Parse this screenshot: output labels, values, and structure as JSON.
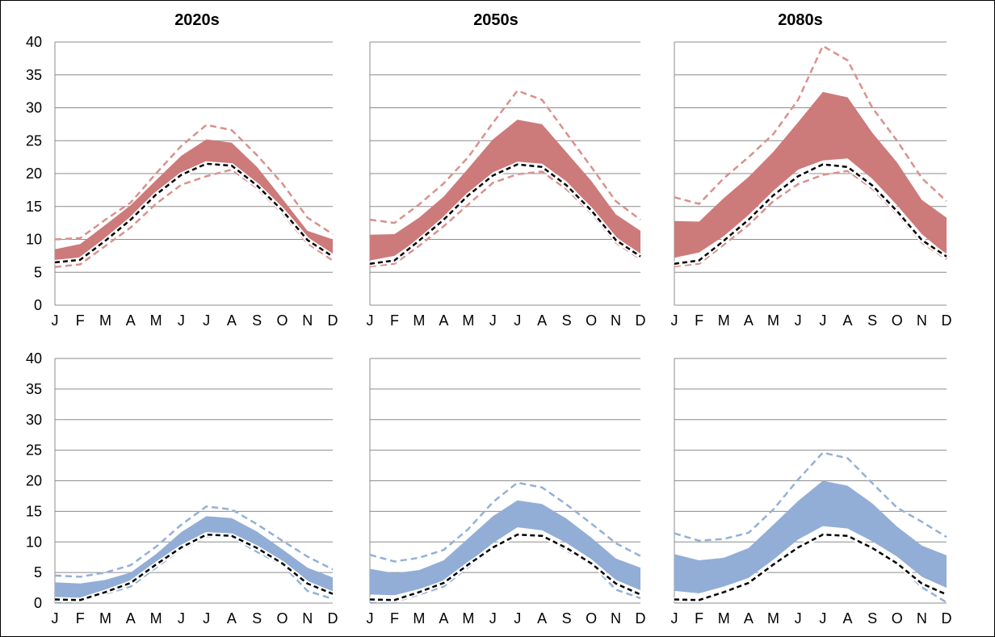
{
  "column_titles": [
    "2020s",
    "2050s",
    "2080s"
  ],
  "colors": {
    "warm_fill": "#cd7a7a",
    "warm_dash": "#d9918d",
    "cool_fill": "#92aed6",
    "cool_dash": "#93b1d6",
    "baseline_dash": "#000000",
    "grid": "#8c8c8c"
  },
  "chart_data": [
    {
      "type": "area",
      "row": "top",
      "column": "2020s",
      "categories": [
        "J",
        "F",
        "M",
        "A",
        "M",
        "J",
        "J",
        "A",
        "S",
        "O",
        "N",
        "D"
      ],
      "ylim": [
        0,
        40
      ],
      "yticks": [
        0,
        5,
        10,
        15,
        20,
        25,
        30,
        35,
        40
      ],
      "grid": true,
      "band_upper": [
        8.5,
        9.3,
        12.2,
        15.2,
        19.0,
        22.7,
        25.2,
        24.7,
        21.0,
        16.2,
        11.3,
        10.0
      ],
      "band_lower": [
        6.3,
        6.6,
        9.5,
        12.8,
        16.5,
        19.6,
        21.5,
        21.2,
        18.2,
        14.3,
        9.9,
        7.3
      ],
      "dash_upper": [
        10.0,
        10.2,
        13.0,
        15.6,
        20.0,
        24.2,
        27.4,
        26.6,
        22.8,
        18.5,
        13.3,
        10.8
      ],
      "dash_lower": [
        5.8,
        6.2,
        9.0,
        11.8,
        15.4,
        18.3,
        19.6,
        20.6,
        17.8,
        14.0,
        9.4,
        6.8
      ],
      "baseline": [
        6.5,
        6.9,
        9.8,
        13.0,
        16.8,
        19.8,
        21.5,
        21.2,
        18.2,
        14.4,
        9.9,
        7.4
      ]
    },
    {
      "type": "area",
      "row": "top",
      "column": "2050s",
      "categories": [
        "J",
        "F",
        "M",
        "A",
        "M",
        "J",
        "J",
        "A",
        "S",
        "O",
        "N",
        "D"
      ],
      "ylim": [
        0,
        40
      ],
      "yticks": [
        0,
        5,
        10,
        15,
        20,
        25,
        30,
        35,
        40
      ],
      "grid": true,
      "band_upper": [
        10.7,
        10.8,
        13.3,
        16.5,
        20.8,
        25.2,
        28.2,
        27.5,
        23.2,
        18.9,
        13.8,
        11.3
      ],
      "band_lower": [
        6.8,
        7.5,
        10.1,
        13.3,
        17.0,
        20.2,
        21.8,
        21.5,
        18.8,
        14.8,
        10.4,
        7.6
      ],
      "dash_upper": [
        13.0,
        12.5,
        15.3,
        18.5,
        22.5,
        27.7,
        32.6,
        31.2,
        26.1,
        21.0,
        15.8,
        13.0
      ],
      "dash_lower": [
        5.9,
        6.3,
        9.0,
        12.0,
        15.3,
        18.6,
        19.9,
        20.3,
        17.6,
        14.0,
        9.5,
        7.0
      ],
      "baseline": [
        6.3,
        6.8,
        9.8,
        13.0,
        16.7,
        19.7,
        21.4,
        21.0,
        18.2,
        14.4,
        9.9,
        7.4
      ]
    },
    {
      "type": "area",
      "row": "top",
      "column": "2080s",
      "categories": [
        "J",
        "F",
        "M",
        "A",
        "M",
        "J",
        "J",
        "A",
        "S",
        "O",
        "N",
        "D"
      ],
      "ylim": [
        0,
        40
      ],
      "yticks": [
        0,
        5,
        10,
        15,
        20,
        25,
        30,
        35,
        40
      ],
      "grid": true,
      "band_upper": [
        12.8,
        12.7,
        16.3,
        19.5,
        23.3,
        27.8,
        32.4,
        31.6,
        26.2,
        21.7,
        16.0,
        13.3
      ],
      "band_lower": [
        7.2,
        8.0,
        10.5,
        13.7,
        17.4,
        20.6,
        22.0,
        22.3,
        19.2,
        15.2,
        10.8,
        7.7
      ],
      "dash_upper": [
        16.4,
        15.4,
        19.3,
        22.5,
        26.0,
        31.2,
        39.4,
        37.2,
        30.0,
        25.0,
        19.3,
        15.8
      ],
      "dash_lower": [
        5.9,
        6.3,
        9.2,
        12.2,
        15.8,
        18.4,
        19.8,
        20.4,
        17.7,
        13.9,
        9.5,
        7.0
      ],
      "baseline": [
        6.3,
        6.8,
        9.8,
        13.0,
        16.7,
        19.6,
        21.4,
        21.0,
        18.2,
        14.3,
        9.9,
        7.4
      ]
    },
    {
      "type": "area",
      "row": "bottom",
      "column": "2020s",
      "categories": [
        "J",
        "F",
        "M",
        "A",
        "M",
        "J",
        "J",
        "A",
        "S",
        "O",
        "N",
        "D"
      ],
      "ylim": [
        0,
        40
      ],
      "yticks": [
        0,
        5,
        10,
        15,
        20,
        25,
        30,
        35,
        40
      ],
      "grid": true,
      "band_upper": [
        3.4,
        3.2,
        3.8,
        5.0,
        8.0,
        11.6,
        14.2,
        13.9,
        11.7,
        8.8,
        5.8,
        4.2
      ],
      "band_lower": [
        0.7,
        0.6,
        1.9,
        3.3,
        6.3,
        9.2,
        11.4,
        11.2,
        9.1,
        6.6,
        3.3,
        1.6
      ],
      "dash_upper": [
        4.5,
        4.3,
        5.0,
        6.2,
        9.2,
        12.8,
        15.8,
        15.3,
        12.9,
        10.2,
        7.6,
        5.5
      ],
      "dash_lower": [
        0.2,
        0.3,
        1.5,
        2.7,
        5.8,
        8.8,
        10.9,
        10.8,
        8.4,
        6.3,
        2.0,
        0.7
      ],
      "baseline": [
        0.6,
        0.5,
        1.8,
        3.3,
        6.3,
        9.1,
        11.2,
        11.0,
        9.0,
        6.5,
        3.2,
        1.5
      ]
    },
    {
      "type": "area",
      "row": "bottom",
      "column": "2050s",
      "categories": [
        "J",
        "F",
        "M",
        "A",
        "M",
        "J",
        "J",
        "A",
        "S",
        "O",
        "N",
        "D"
      ],
      "ylim": [
        0,
        40
      ],
      "yticks": [
        0,
        5,
        10,
        15,
        20,
        25,
        30,
        35,
        40
      ],
      "grid": true,
      "band_upper": [
        5.6,
        4.9,
        5.4,
        7.0,
        10.6,
        14.2,
        16.8,
        16.2,
        13.8,
        10.7,
        7.3,
        5.8
      ],
      "band_lower": [
        1.4,
        1.3,
        2.3,
        3.7,
        6.6,
        9.8,
        12.4,
        11.9,
        9.8,
        7.2,
        3.8,
        2.1
      ],
      "dash_upper": [
        7.9,
        6.8,
        7.4,
        8.7,
        12.1,
        16.5,
        19.7,
        18.9,
        16.1,
        13.0,
        9.8,
        7.7
      ],
      "dash_lower": [
        0.2,
        0.2,
        1.4,
        2.7,
        5.9,
        9.0,
        11.0,
        11.0,
        8.6,
        6.4,
        2.2,
        0.8
      ],
      "baseline": [
        0.6,
        0.5,
        1.8,
        3.3,
        6.3,
        9.1,
        11.2,
        11.0,
        9.0,
        6.5,
        3.2,
        1.4
      ]
    },
    {
      "type": "area",
      "row": "bottom",
      "column": "2080s",
      "categories": [
        "J",
        "F",
        "M",
        "A",
        "M",
        "J",
        "J",
        "A",
        "S",
        "O",
        "N",
        "D"
      ],
      "ylim": [
        0,
        40
      ],
      "yticks": [
        0,
        5,
        10,
        15,
        20,
        25,
        30,
        35,
        40
      ],
      "grid": true,
      "band_upper": [
        8.0,
        7.0,
        7.4,
        9.0,
        12.8,
        16.7,
        20.0,
        19.2,
        16.3,
        12.5,
        9.4,
        7.8
      ],
      "band_lower": [
        2.0,
        1.6,
        2.7,
        4.1,
        7.1,
        10.4,
        12.6,
        12.2,
        10.1,
        7.6,
        4.3,
        2.5
      ],
      "dash_upper": [
        11.4,
        10.2,
        10.5,
        11.5,
        15.3,
        20.2,
        24.6,
        23.7,
        19.6,
        15.6,
        13.3,
        10.8
      ],
      "dash_lower": [
        0.3,
        0.3,
        1.6,
        3.0,
        6.3,
        9.4,
        11.2,
        11.1,
        8.9,
        6.5,
        2.6,
        0.1
      ],
      "baseline": [
        0.6,
        0.5,
        1.8,
        3.3,
        6.3,
        9.1,
        11.2,
        11.0,
        9.0,
        6.5,
        3.2,
        1.4
      ]
    }
  ]
}
